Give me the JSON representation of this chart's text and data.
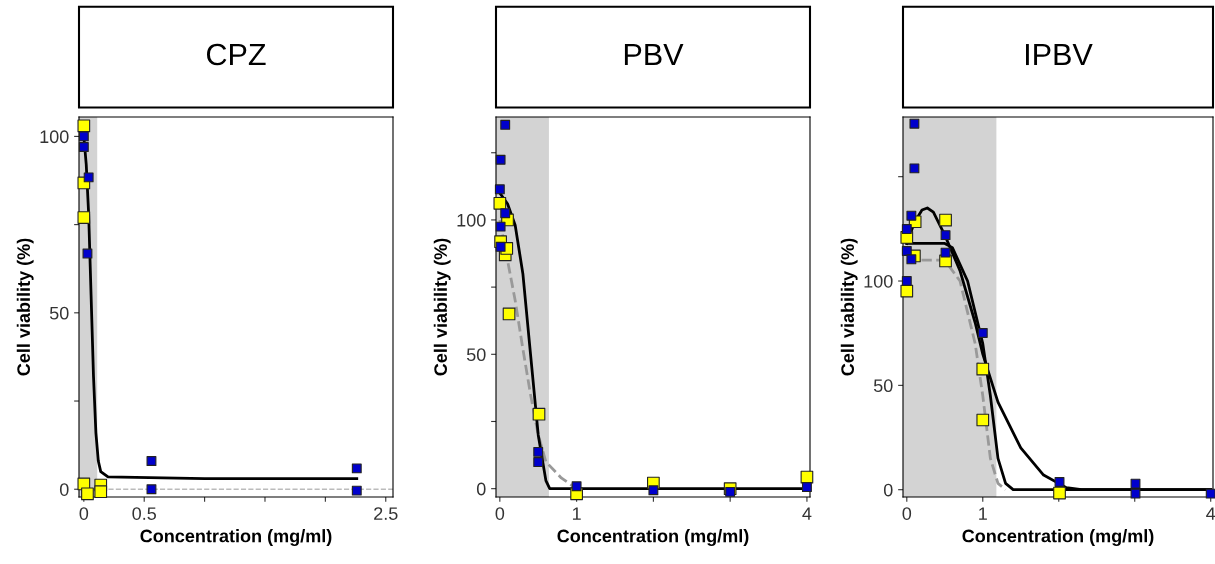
{
  "chart_data": [
    {
      "type": "scatter",
      "title": "CPZ",
      "xlabel": "Concentration (mg/ml)",
      "ylabel": "Cell viability (%)",
      "xlim": [
        -0.04,
        2.56
      ],
      "ylim": [
        -2.2,
        105.5
      ],
      "xticks": [
        0,
        0.5,
        {
          "value": 1,
          "label": null
        },
        {
          "value": 1.5,
          "label": null
        },
        {
          "value": 2,
          "label": null
        },
        2.5
      ],
      "yticks": [
        0,
        {
          "value": 25,
          "label": null
        },
        50,
        {
          "value": 75,
          "label": null
        },
        100
      ],
      "grid": false,
      "bands": [
        {
          "axis": "x",
          "from": -0.04,
          "to": 0.105,
          "color": "#d3d3d3"
        }
      ],
      "ref_lines": [
        {
          "axis": "y",
          "value": 0,
          "color": "#bbbbbb",
          "line_style": "dashed"
        }
      ],
      "series": [
        {
          "type": "line",
          "color": "#000000",
          "line_style": "solid",
          "x": [
            0,
            0.02,
            0.04,
            0.06,
            0.08,
            0.1,
            0.12,
            0.14,
            0.2,
            1.0,
            2.26
          ],
          "values": [
            100,
            92,
            78,
            55,
            32,
            16,
            8,
            5,
            3.5,
            3,
            3
          ]
        },
        {
          "marker": "square",
          "color": "#ffff00",
          "x": [
            0,
            0,
            0,
            0,
            0.03,
            0.14,
            0.14
          ],
          "values": [
            103,
            86.8,
            77,
            1.5,
            -1.3,
            1.2,
            -0.7
          ]
        },
        {
          "marker": "square",
          "color": "#0000cc",
          "x": [
            0,
            0,
            0.04,
            0.03,
            0.56,
            0.56,
            2.26,
            2.26
          ],
          "values": [
            100,
            97,
            88.4,
            66.8,
            8,
            0,
            5.9,
            -0.4
          ]
        }
      ]
    },
    {
      "type": "scatter",
      "title": "PBV",
      "xlabel": "Concentration (mg/ml)",
      "ylabel": "Cell viability (%)",
      "xlim": [
        -0.05,
        4.04
      ],
      "ylim": [
        -3.1,
        138.3
      ],
      "xticks": [
        0,
        1,
        {
          "value": 2,
          "label": null
        },
        {
          "value": 3,
          "label": null
        },
        4
      ],
      "yticks": [
        0,
        {
          "value": 25,
          "label": null
        },
        50,
        {
          "value": 75,
          "label": null
        },
        100,
        {
          "value": 125,
          "label": null
        }
      ],
      "grid": false,
      "bands": [
        {
          "axis": "x",
          "from": -0.05,
          "to": 0.63,
          "color": "#d3d3d3"
        }
      ],
      "series": [
        {
          "type": "line",
          "color": "#999999",
          "line_style": "dashed",
          "x": [
            0,
            0.1,
            0.2,
            0.3,
            0.4,
            0.5,
            0.6,
            0.8,
            1.0
          ],
          "values": [
            100,
            85,
            70,
            52,
            35,
            20,
            10,
            4,
            0
          ]
        },
        {
          "type": "line",
          "color": "#000000",
          "line_style": "solid",
          "x": [
            0,
            0.1,
            0.2,
            0.3,
            0.4,
            0.5,
            0.6,
            0.65,
            4
          ],
          "values": [
            110,
            106,
            98,
            80,
            50,
            20,
            3,
            0,
            0
          ]
        },
        {
          "marker": "square",
          "color": "#ffff00",
          "x": [
            0,
            0.01,
            0.07,
            0.09,
            0.1,
            0.12,
            0.51,
            1,
            2,
            3,
            4
          ],
          "values": [
            106.2,
            91.9,
            87,
            89.4,
            100,
            65,
            27.7,
            -1.9,
            2.1,
            0,
            4.3
          ]
        },
        {
          "marker": "square",
          "color": "#0000cc",
          "x": [
            0.07,
            0.01,
            0,
            0.01,
            0.01,
            0.07,
            0.5,
            0.5,
            1,
            2,
            3,
            4
          ],
          "values": [
            135.4,
            122.4,
            111.4,
            97.5,
            90,
            102.5,
            13.7,
            9.9,
            0.9,
            -0.6,
            -1.2,
            0.6
          ]
        }
      ]
    },
    {
      "type": "scatter",
      "title": "IPBV",
      "xlabel": "Concentration (mg/ml)",
      "ylabel": "Cell viability (%)",
      "xlim": [
        -0.05,
        4.03
      ],
      "ylim": [
        -3.5,
        178.6
      ],
      "xticks": [
        0,
        1,
        {
          "value": 2,
          "label": null
        },
        {
          "value": 3,
          "label": null
        },
        4
      ],
      "yticks": [
        0,
        50,
        100,
        {
          "value": 150,
          "label": null
        }
      ],
      "grid": false,
      "bands": [
        {
          "axis": "x",
          "from": -0.05,
          "to": 1.17,
          "color": "#d3d3d3"
        }
      ],
      "series": [
        {
          "type": "line",
          "color": "#999999",
          "line_style": "dashed",
          "x": [
            0,
            0.5,
            0.7,
            0.9,
            1.0,
            1.1,
            1.2,
            1.3
          ],
          "values": [
            110,
            110,
            100,
            70,
            45,
            15,
            3,
            0
          ]
        },
        {
          "type": "line",
          "color": "#000000",
          "line_style": "solid",
          "x": [
            0,
            0.1,
            0.2,
            0.27,
            0.35,
            0.5,
            0.7,
            0.9,
            1.0,
            1.2,
            1.5,
            1.8,
            2.1,
            2.3,
            4
          ],
          "values": [
            118,
            128,
            134,
            135,
            133,
            122,
            105,
            80,
            65,
            42,
            20,
            7,
            1,
            0,
            0
          ]
        },
        {
          "type": "line",
          "color": "#000000",
          "line_style": "solid",
          "x": [
            0,
            0.5,
            0.6,
            0.8,
            1.0,
            1.1,
            1.2,
            1.3,
            1.4,
            4
          ],
          "values": [
            118,
            118,
            116,
            100,
            70,
            45,
            15,
            3,
            0,
            0
          ]
        },
        {
          "marker": "square",
          "color": "#ffff00",
          "x": [
            0,
            0.11,
            0.1,
            0,
            0.51,
            0.51,
            1,
            1,
            2.01
          ],
          "values": [
            120.9,
            128.4,
            112,
            95.2,
            129.2,
            109.6,
            57.8,
            33.4,
            -1.6
          ]
        },
        {
          "marker": "square",
          "color": "#0000cc",
          "x": [
            0.1,
            0.1,
            0.06,
            0,
            0,
            0.06,
            0,
            0.51,
            0.51,
            1,
            2.01,
            3.01,
            3.01,
            4
          ],
          "values": [
            175.4,
            154,
            131.3,
            124.9,
            114.4,
            110.4,
            100,
            122,
            113.6,
            75.1,
            3.7,
            2.9,
            -1.9,
            -1.9
          ]
        }
      ]
    }
  ]
}
